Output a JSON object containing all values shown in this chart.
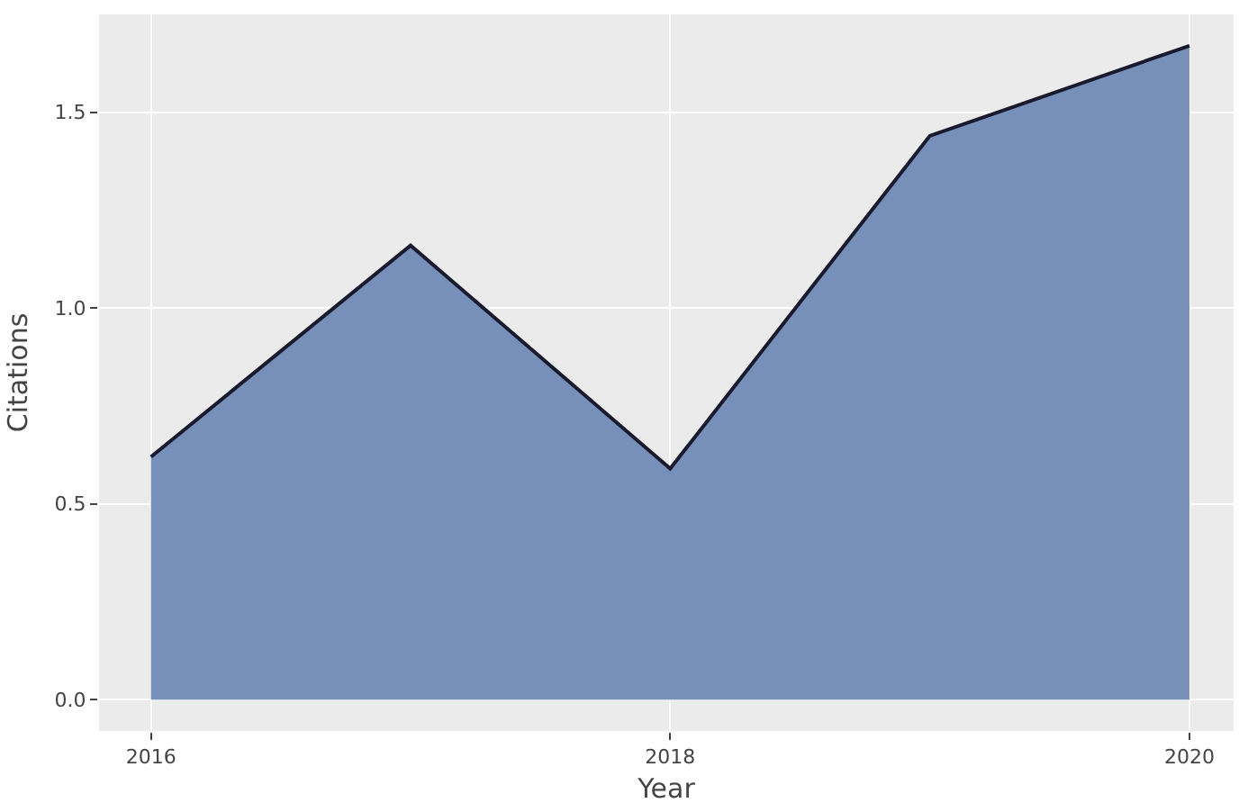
{
  "chart_data": {
    "type": "area",
    "xlabel": "Year",
    "ylabel": "Citations",
    "x": [
      2016,
      2017,
      2018,
      2019,
      2020
    ],
    "series": [
      {
        "color": "#7690b9",
        "values": [
          0.62,
          1.16,
          0.59,
          1.44,
          1.67
        ]
      }
    ],
    "xlim": [
      2015.8,
      2020.17
    ],
    "xticks": [
      2016,
      2018,
      2020
    ],
    "ylim": [
      -0.08,
      1.75
    ],
    "yticks": [
      {
        "value": 0,
        "label": "0.0"
      },
      {
        "value": 0.5,
        "label": "0.5"
      },
      {
        "value": 1,
        "label": "1.0"
      },
      {
        "value": 1.5,
        "label": "1.5"
      }
    ],
    "grid": true
  }
}
